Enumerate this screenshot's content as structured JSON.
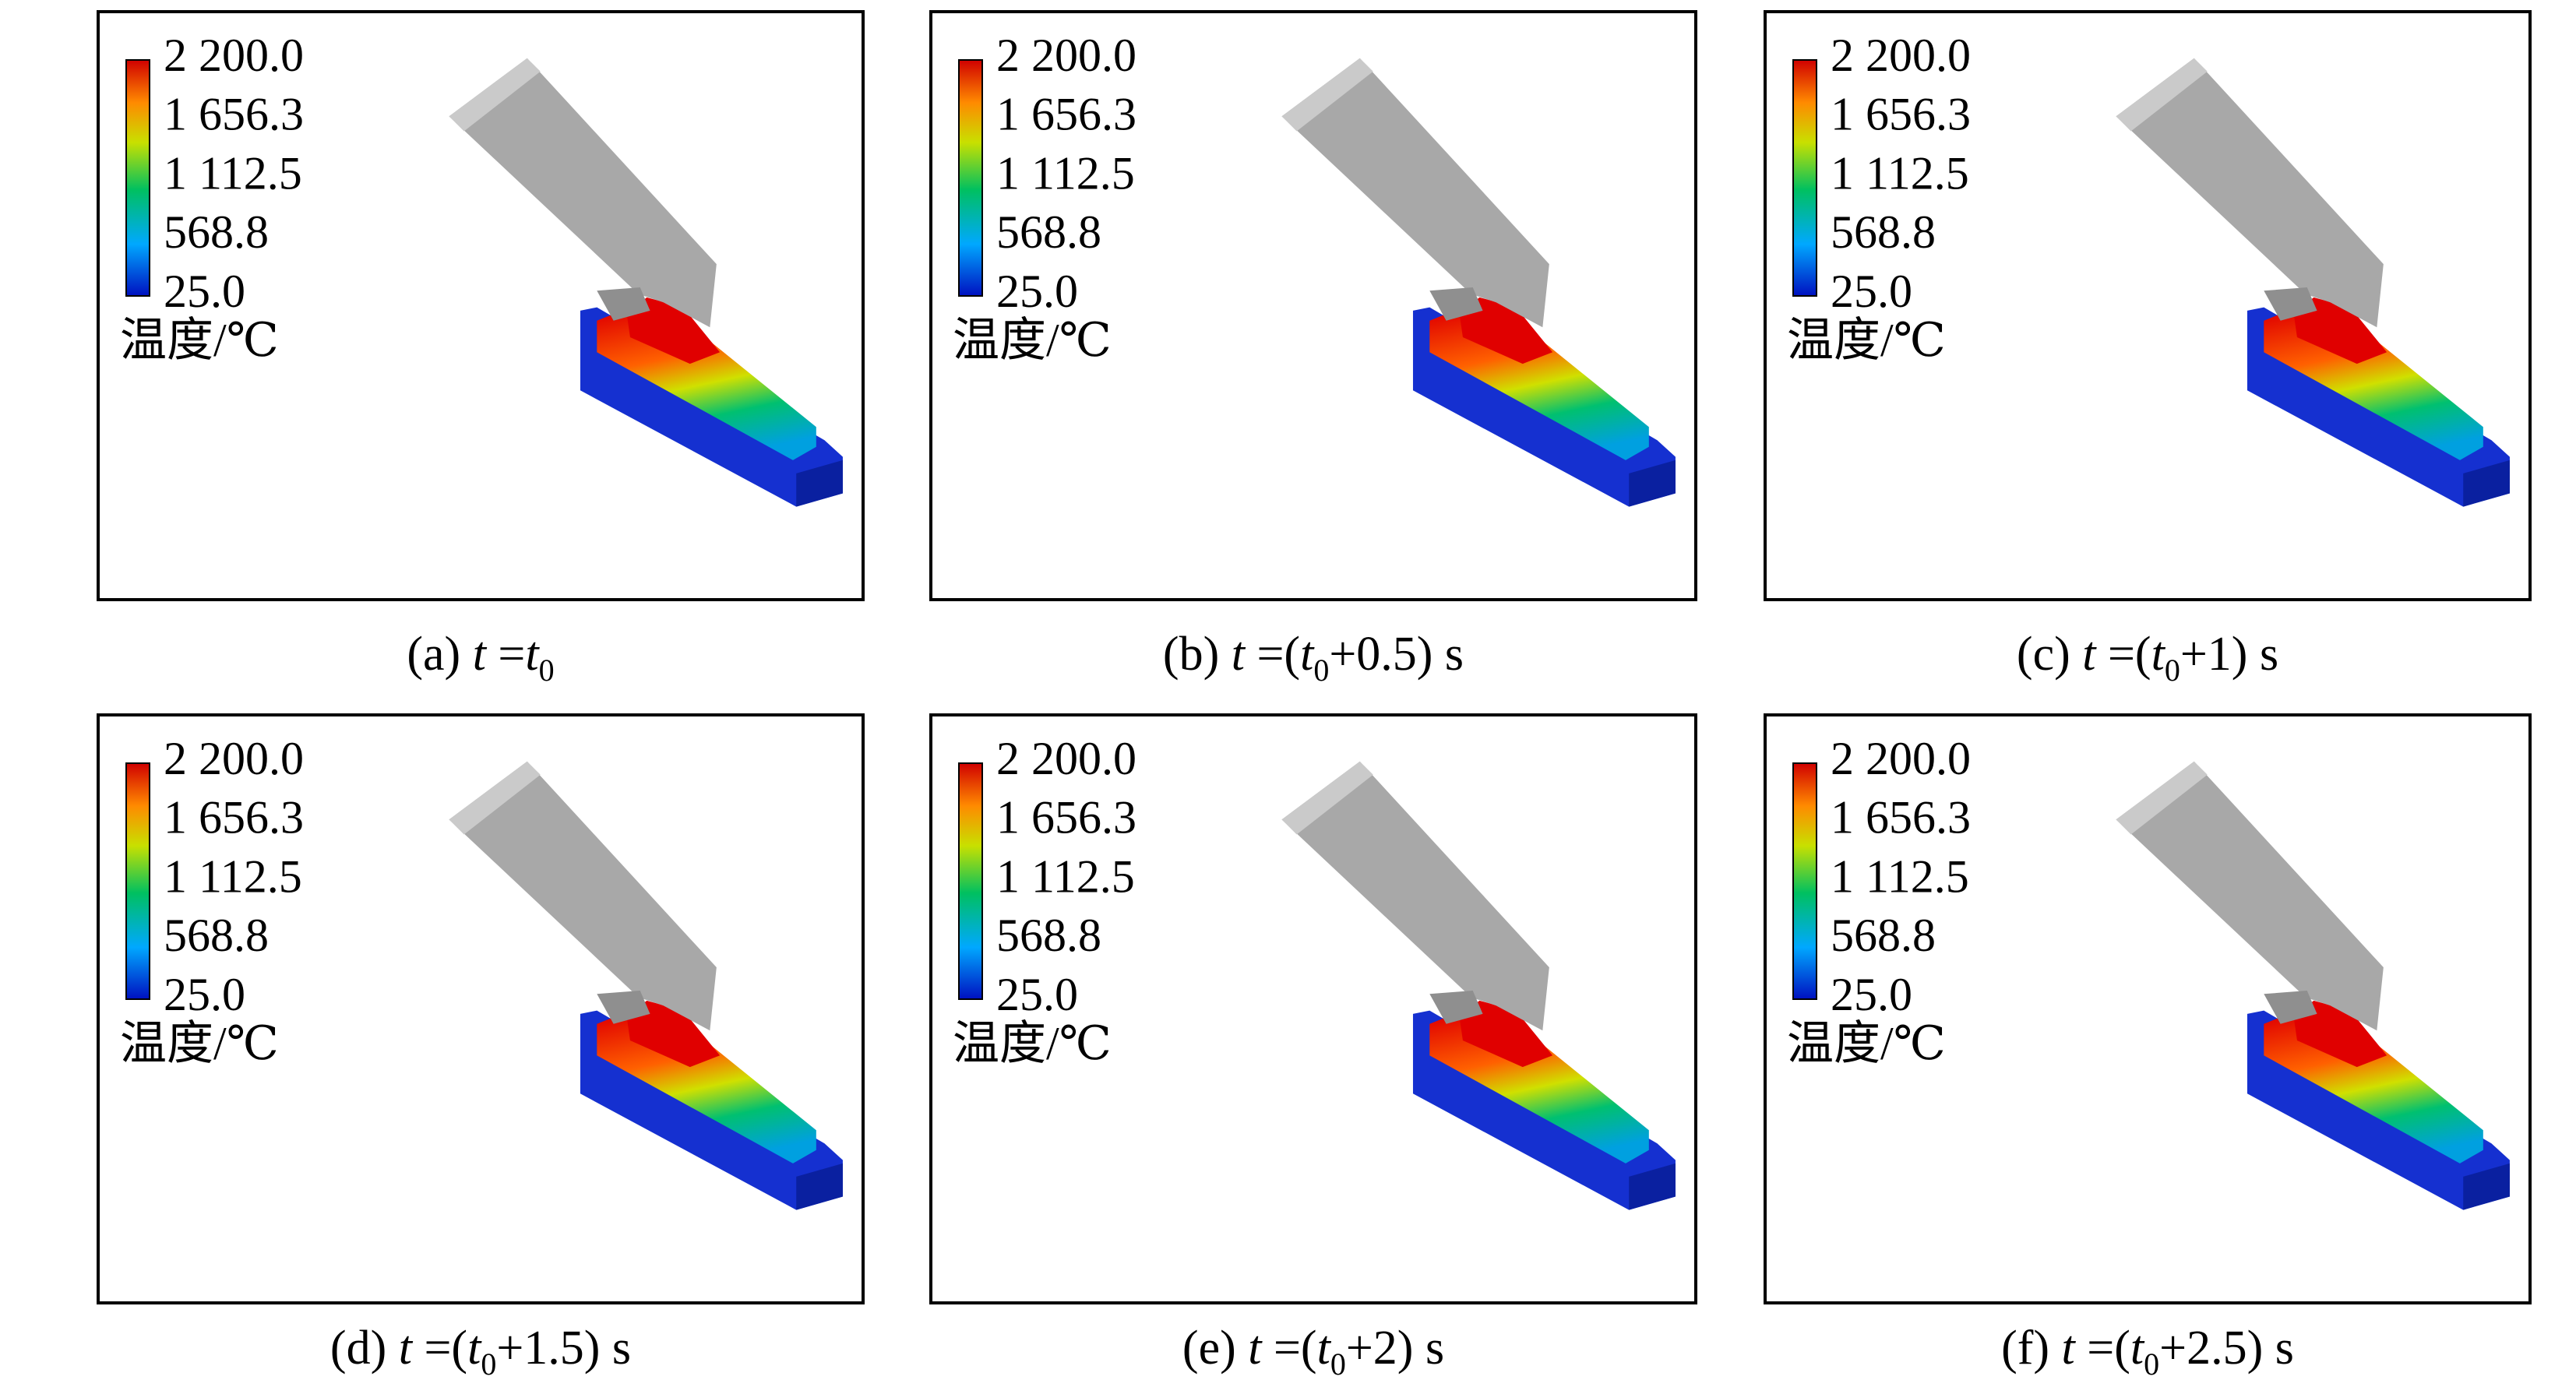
{
  "panels": [
    {
      "legend": {
        "labels": [
          "2 200.0",
          "1 656.3",
          "1 112.5",
          "568.8",
          "25.0"
        ],
        "title": "温度/℃"
      },
      "caption": {
        "label": "(a)",
        "var": "t",
        "eq": "=",
        "base": "t",
        "sub": "0"
      }
    },
    {
      "legend": {
        "labels": [
          "2 200.0",
          "1 656.3",
          "1 112.5",
          "568.8",
          "25.0"
        ],
        "title": "温度/℃"
      },
      "caption": {
        "label": "(b)",
        "var": "t",
        "eq": "=(",
        "base": "t",
        "sub": "0",
        "rest": "+0.5) s"
      }
    },
    {
      "legend": {
        "labels": [
          "2 200.0",
          "1 656.3",
          "1 112.5",
          "568.8",
          "25.0"
        ],
        "title": "温度/℃"
      },
      "caption": {
        "label": "(c)",
        "var": "t",
        "eq": "=(",
        "base": "t",
        "sub": "0",
        "rest": "+1) s"
      }
    },
    {
      "legend": {
        "labels": [
          "2 200.0",
          "1 656.3",
          "1 112.5",
          "568.8",
          "25.0"
        ],
        "title": "温度/℃"
      },
      "caption": {
        "label": "(d)",
        "var": "t",
        "eq": "=(",
        "base": "t",
        "sub": "0",
        "rest": "+1.5) s"
      }
    },
    {
      "legend": {
        "labels": [
          "2 200.0",
          "1 656.3",
          "1 112.5",
          "568.8",
          "25.0"
        ],
        "title": "温度/℃"
      },
      "caption": {
        "label": "(e)",
        "var": "t",
        "eq": "=(",
        "base": "t",
        "sub": "0",
        "rest": "+2) s"
      }
    },
    {
      "legend": {
        "labels": [
          "2 200.0",
          "1 656.3",
          "1 112.5",
          "568.8",
          "25.0"
        ],
        "title": "温度/℃"
      },
      "caption": {
        "label": "(f)",
        "var": "t",
        "eq": "=(",
        "base": "t",
        "sub": "0",
        "rest": "+2.5) s"
      }
    }
  ]
}
